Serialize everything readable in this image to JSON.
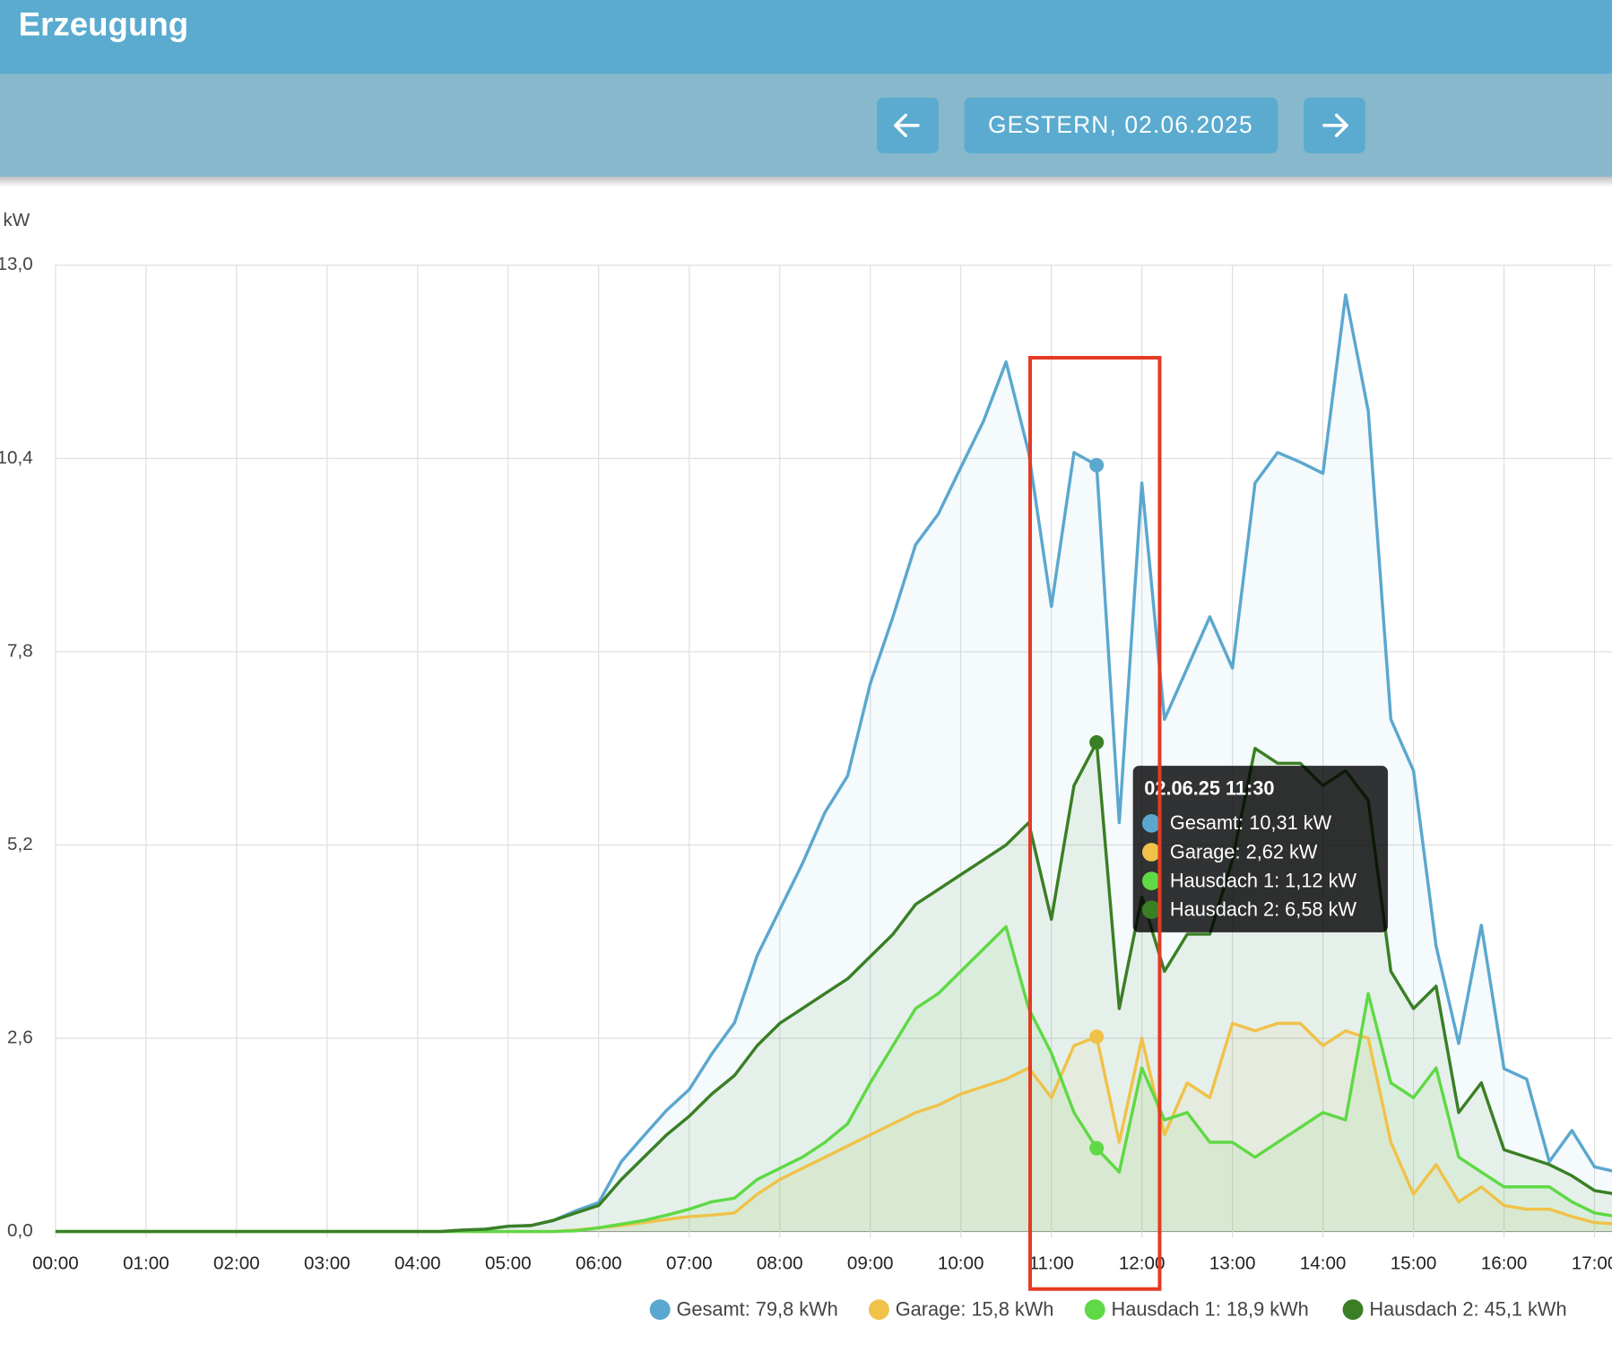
{
  "header": {
    "title": "Erzeugung",
    "date": "GESTERN, 02.06.2025"
  },
  "chart_data": {
    "type": "line",
    "y_label": "kW",
    "x": [
      0,
      4.25,
      4.5,
      4.75,
      5,
      5.25,
      5.5,
      5.75,
      6,
      6.25,
      6.5,
      6.75,
      7,
      7.25,
      7.5,
      7.75,
      8,
      8.25,
      8.5,
      8.75,
      9,
      9.25,
      9.5,
      9.75,
      10,
      10.25,
      10.5,
      10.75,
      11,
      11.25,
      11.5,
      11.75,
      12,
      12.25,
      12.5,
      12.75,
      13,
      13.25,
      13.5,
      13.75,
      14,
      14.25,
      14.5,
      14.75,
      15,
      15.25,
      15.5,
      15.75,
      16,
      16.25,
      16.5,
      16.75,
      17,
      17.25
    ],
    "series": [
      {
        "name": "Gesamt",
        "legend": "Gesamt: 79,8 kWh",
        "color": "#5ba7cf",
        "values": [
          0,
          0,
          0.02,
          0.03,
          0.07,
          0.08,
          0.15,
          0.28,
          0.39,
          0.94,
          1.29,
          1.63,
          1.91,
          2.39,
          2.81,
          3.71,
          4.33,
          4.95,
          5.64,
          6.13,
          7.37,
          8.27,
          9.24,
          9.65,
          10.28,
          10.9,
          11.7,
          10.48,
          8.41,
          10.48,
          10.31,
          5.5,
          10.07,
          6.89,
          7.58,
          8.27,
          7.58,
          10.07,
          10.48,
          10.35,
          10.2,
          12.6,
          11.04,
          6.89,
          6.2,
          3.84,
          2.53,
          4.12,
          2.19,
          2.05,
          0.94,
          1.36,
          0.87,
          0.8
        ]
      },
      {
        "name": "Garage",
        "legend": "Garage: 15,8 kWh",
        "color": "#f0c24a",
        "values": [
          0,
          0,
          0,
          0,
          0,
          0,
          0,
          0.02,
          0.05,
          0.08,
          0.12,
          0.16,
          0.2,
          0.22,
          0.25,
          0.5,
          0.7,
          0.85,
          1.0,
          1.15,
          1.3,
          1.45,
          1.6,
          1.7,
          1.85,
          1.95,
          2.05,
          2.2,
          1.8,
          2.5,
          2.62,
          1.2,
          2.6,
          1.3,
          2.0,
          1.8,
          2.8,
          2.7,
          2.8,
          2.8,
          2.5,
          2.7,
          2.6,
          1.2,
          0.5,
          0.9,
          0.4,
          0.6,
          0.35,
          0.3,
          0.3,
          0.2,
          0.12,
          0.1
        ]
      },
      {
        "name": "Hausdach 1",
        "legend": "Hausdach 1: 18,9 kWh",
        "color": "#5fd945",
        "values": [
          0,
          0,
          0,
          0,
          0,
          0,
          0,
          0.01,
          0.05,
          0.1,
          0.15,
          0.22,
          0.3,
          0.4,
          0.45,
          0.7,
          0.85,
          1.0,
          1.2,
          1.45,
          2.0,
          2.5,
          3.0,
          3.2,
          3.5,
          3.8,
          4.1,
          3.0,
          2.4,
          1.6,
          1.12,
          0.8,
          2.2,
          1.5,
          1.6,
          1.2,
          1.2,
          1.0,
          1.2,
          1.4,
          1.6,
          1.5,
          3.2,
          2.0,
          1.8,
          2.2,
          1.0,
          0.8,
          0.6,
          0.6,
          0.6,
          0.4,
          0.25,
          0.2
        ]
      },
      {
        "name": "Hausdach 2",
        "legend": "Hausdach 2: 45,1 kWh",
        "color": "#3a7f25",
        "values": [
          0,
          0,
          0.02,
          0.03,
          0.07,
          0.08,
          0.15,
          0.25,
          0.35,
          0.7,
          1.0,
          1.3,
          1.55,
          1.85,
          2.1,
          2.5,
          2.8,
          3.0,
          3.2,
          3.4,
          3.7,
          4.0,
          4.4,
          4.6,
          4.8,
          5.0,
          5.2,
          5.5,
          4.2,
          6.0,
          6.58,
          3.0,
          4.5,
          3.5,
          4.0,
          4.0,
          5.0,
          6.5,
          6.3,
          6.3,
          6.0,
          6.2,
          5.8,
          3.5,
          3.0,
          3.3,
          1.6,
          2.0,
          1.1,
          1.0,
          0.9,
          0.75,
          0.55,
          0.5
        ]
      }
    ],
    "xlim": [
      0,
      17.19
    ],
    "ylim": [
      0,
      13
    ],
    "xticks": [
      {
        "value": 0,
        "label": "00:00"
      },
      {
        "value": 1,
        "label": "01:00"
      },
      {
        "value": 2,
        "label": "02:00"
      },
      {
        "value": 3,
        "label": "03:00"
      },
      {
        "value": 4,
        "label": "04:00"
      },
      {
        "value": 5,
        "label": "05:00"
      },
      {
        "value": 6,
        "label": "06:00"
      },
      {
        "value": 7,
        "label": "07:00"
      },
      {
        "value": 8,
        "label": "08:00"
      },
      {
        "value": 9,
        "label": "09:00"
      },
      {
        "value": 10,
        "label": "10:00"
      },
      {
        "value": 11,
        "label": "11:00"
      },
      {
        "value": 12,
        "label": "12:00"
      },
      {
        "value": 13,
        "label": "13:00"
      },
      {
        "value": 14,
        "label": "14:00"
      },
      {
        "value": 15,
        "label": "15:00"
      },
      {
        "value": 16,
        "label": "16:00"
      },
      {
        "value": 17,
        "label": "17:00"
      }
    ],
    "yticks": [
      {
        "value": 0,
        "label": "0,0"
      },
      {
        "value": 2.6,
        "label": "2,6"
      },
      {
        "value": 5.2,
        "label": "5,2"
      },
      {
        "value": 7.8,
        "label": "7,8"
      },
      {
        "value": 10.4,
        "label": "10,4"
      },
      {
        "value": 13,
        "label": "13,0"
      }
    ],
    "grid": true,
    "hover_index": 30,
    "tooltip": {
      "title": "02.06.25 11:30",
      "items": [
        "Gesamt: 10,31 kW",
        "Garage: 2,62 kW",
        "Hausdach 1: 1,12 kW",
        "Hausdach 2: 6,58 kW"
      ]
    }
  }
}
